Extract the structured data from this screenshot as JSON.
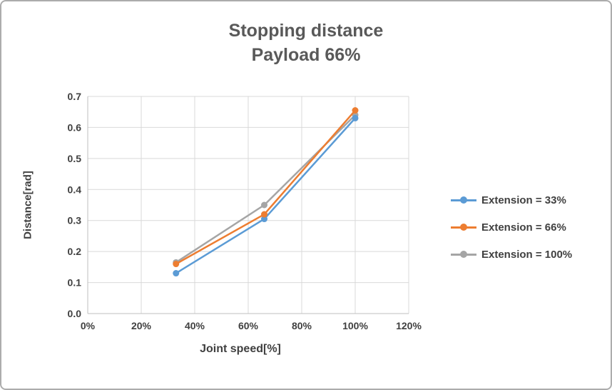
{
  "chart_data": {
    "type": "line",
    "title": "Stopping distance",
    "subtitle": "Payload 66%",
    "xlabel": "Joint speed[%]",
    "ylabel": "Distance[rad]",
    "x": [
      33,
      66,
      100
    ],
    "series": [
      {
        "name": "Extension = 33%",
        "color": "#5B9BD5",
        "values": [
          0.13,
          0.305,
          0.63
        ]
      },
      {
        "name": "Extension = 66%",
        "color": "#ED7D31",
        "values": [
          0.16,
          0.32,
          0.655
        ]
      },
      {
        "name": "Extension = 100%",
        "color": "#A5A5A5",
        "values": [
          0.165,
          0.35,
          0.64
        ]
      }
    ],
    "xlim": [
      0,
      120
    ],
    "ylim": [
      0,
      0.7
    ],
    "x_tick_values": [
      0,
      20,
      40,
      60,
      80,
      100,
      120
    ],
    "x_ticks": [
      "0%",
      "20%",
      "40%",
      "60%",
      "80%",
      "100%",
      "120%"
    ],
    "y_tick_values": [
      0,
      0.1,
      0.2,
      0.3,
      0.4,
      0.5,
      0.6,
      0.7
    ],
    "y_ticks": [
      "0.0",
      "0.1",
      "0.2",
      "0.3",
      "0.4",
      "0.5",
      "0.6",
      "0.7"
    ],
    "grid": true,
    "legend_position": "right",
    "colors": {
      "grid": "#D9D9D9",
      "axis": "#BFBFBF",
      "text": "#404040",
      "title": "#595959"
    }
  }
}
